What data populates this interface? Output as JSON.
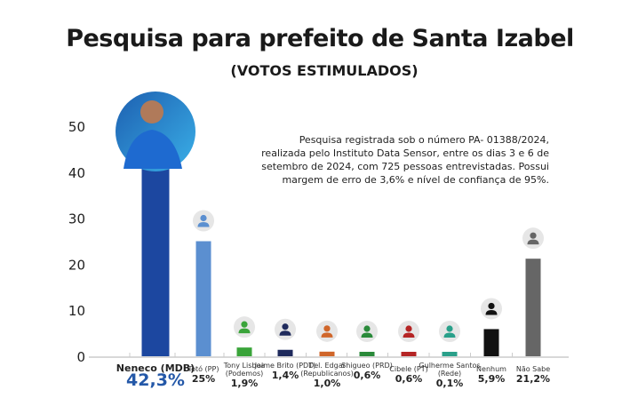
{
  "chart_data": {
    "type": "bar",
    "title": "Pesquisa para prefeito de Santa Izabel",
    "subtitle": "(VOTOS ESTIMULADOS)",
    "annotation": "Pesquisa registrada sob o número PA- 01388/2024, realizada pelo Instituto Data Sensor, entre os dias 3 e 6 de setembro de 2024, com 725 pessoas entrevistadas. Possui margem de erro de 3,6% e nível de confiança de 95%.",
    "ylim": [
      0,
      50
    ],
    "yticks": [
      "0",
      "10",
      "20",
      "30",
      "40",
      "50"
    ],
    "grid": false,
    "categories": [
      "Neneco (MDB)",
      "Totó (PP)",
      "Tony Lisboa (Podemos)",
      "Jaime Brito (PDT)",
      "Del. Edgar (Republicanos)",
      "Shigueo (PRD)",
      "Cibele (PT)",
      "Gulherme Santos (Rede)",
      "Nenhum",
      "Não Sabe"
    ],
    "values": [
      42.3,
      25,
      1.9,
      1.4,
      1.0,
      0.6,
      0.6,
      0.1,
      5.9,
      21.2
    ],
    "value_labels": [
      "42,3%",
      "25%",
      "1,9%",
      "1,4%",
      "1,0%",
      "0,6%",
      "0,6%",
      "0,1%",
      "5,9%",
      "21,2%"
    ],
    "colors": [
      "#1c47a0",
      "#5b8fd0",
      "#3aa43a",
      "#1f2a5c",
      "#d0662a",
      "#2a8a3a",
      "#b52525",
      "#2aa08a",
      "#111111",
      "#666666"
    ],
    "icons": [
      "candidate-photo",
      "person-icon",
      "person-icon",
      "person-icon",
      "person-icon",
      "person-icon",
      "person-icon",
      "person-icon",
      "person-icon",
      "person-icon"
    ]
  }
}
